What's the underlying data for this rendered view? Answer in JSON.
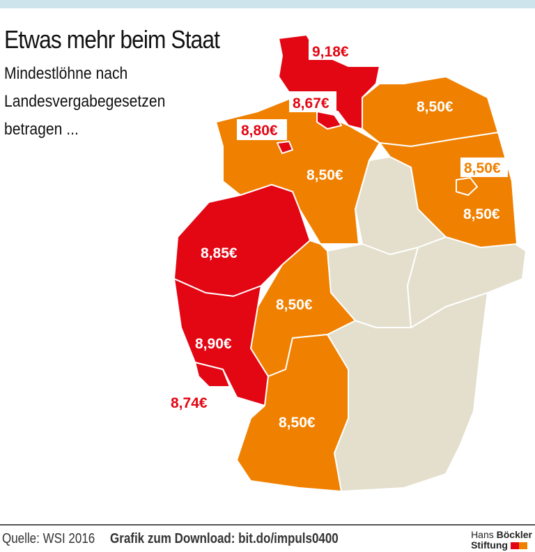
{
  "title": "Etwas mehr beim Staat",
  "subtitle_lines": [
    "Mindestlöhne nach",
    "Landesvergabegesetzen",
    "betragen ..."
  ],
  "colors": {
    "high": "#e30613",
    "standard": "#f08000",
    "none": "#e3dfcc"
  },
  "states": {
    "schleswig_holstein": "9,18€",
    "hamburg": "8,67€",
    "bremen": "8,80€",
    "mecklenburg_vorpommern": "8,50€",
    "niedersachsen": "8,50€",
    "berlin": "8,50€",
    "brandenburg": "8,50€",
    "nordrhein_westfalen": "8,85€",
    "hessen": "8,50€",
    "rheinland_pfalz": "8,90€",
    "saarland": "8,74€",
    "baden_wuerttemberg": "8,50€"
  },
  "footer": {
    "source": "Quelle: WSI 2016",
    "download": "Grafik zum Download: bit.do/impuls0400",
    "logo_line1_a": "Hans",
    "logo_line1_b": "Böckler",
    "logo_line2": "Stiftung"
  }
}
